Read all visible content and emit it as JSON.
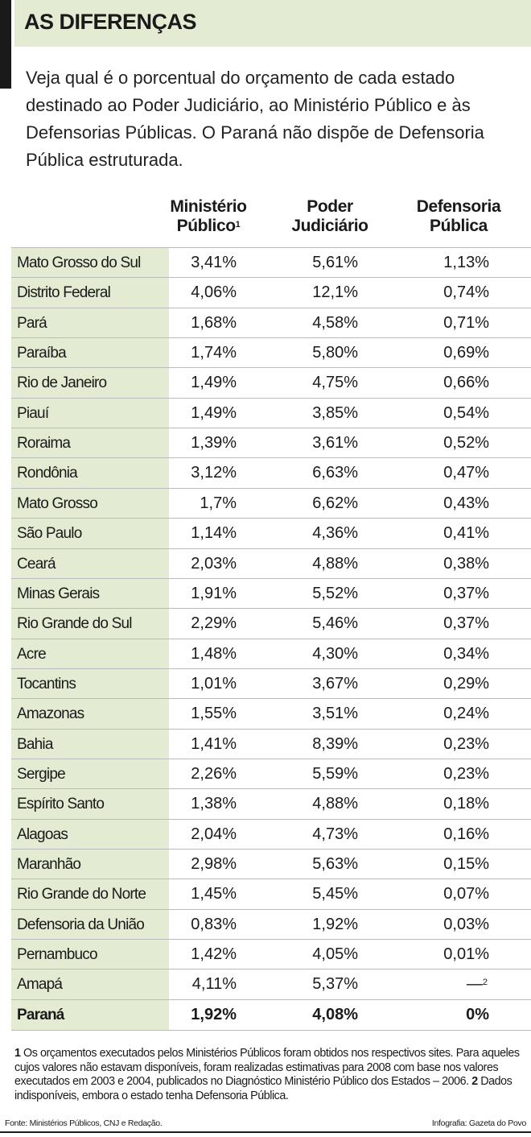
{
  "header": {
    "title": "AS DIFERENÇAS",
    "intro": "Veja qual é o porcentual do orçamento de cada estado destinado ao Poder Judiciário, ao Ministério Público e às Defensorias Públicas. O Paraná não dispõe de Defensoria Pública estruturada."
  },
  "table": {
    "columns": [
      {
        "lines": [
          "Ministério",
          "Público"
        ],
        "note": "1"
      },
      {
        "lines": [
          "Poder",
          "Judiciário"
        ]
      },
      {
        "lines": [
          "Defensoria",
          "Pública"
        ]
      }
    ],
    "rows": [
      [
        "Mato Grosso do Sul",
        "3,41%",
        "5,61%",
        "1,13%"
      ],
      [
        "Distrito Federal",
        "4,06%",
        "12,1%",
        "0,74%"
      ],
      [
        "Pará",
        "1,68%",
        "4,58%",
        "0,71%"
      ],
      [
        "Paraíba",
        "1,74%",
        "5,80%",
        "0,69%"
      ],
      [
        "Rio de Janeiro",
        "1,49%",
        "4,75%",
        "0,66%"
      ],
      [
        "Piauí",
        "1,49%",
        "3,85%",
        "0,54%"
      ],
      [
        "Roraima",
        "1,39%",
        "3,61%",
        "0,52%"
      ],
      [
        "Rondônia",
        "3,12%",
        "6,63%",
        "0,47%"
      ],
      [
        "Mato Grosso",
        "1,7%",
        "6,62%",
        "0,43%"
      ],
      [
        "São Paulo",
        "1,14%",
        "4,36%",
        "0,41%"
      ],
      [
        "Ceará",
        "2,03%",
        "4,88%",
        "0,38%"
      ],
      [
        "Minas Gerais",
        "1,91%",
        "5,52%",
        "0,37%"
      ],
      [
        "Rio Grande do Sul",
        "2,29%",
        "5,46%",
        "0,37%"
      ],
      [
        "Acre",
        "1,48%",
        "4,30%",
        "0,34%"
      ],
      [
        "Tocantins",
        "1,01%",
        "3,67%",
        "0,29%"
      ],
      [
        "Amazonas",
        "1,55%",
        "3,51%",
        "0,24%"
      ],
      [
        "Bahia",
        "1,41%",
        "8,39%",
        "0,23%"
      ],
      [
        "Sergipe",
        "2,26%",
        "5,59%",
        "0,23%"
      ],
      [
        "Espírito Santo",
        "1,38%",
        "4,88%",
        "0,18%"
      ],
      [
        "Alagoas",
        "2,04%",
        "4,73%",
        "0,16%"
      ],
      [
        "Maranhão",
        "2,98%",
        "5,63%",
        "0,15%"
      ],
      [
        "Rio Grande do Norte",
        "1,45%",
        "5,45%",
        "0,07%"
      ],
      [
        "Defensoria da União",
        "0,83%",
        "1,92%",
        "0,03%"
      ],
      [
        "Pernambuco",
        "1,42%",
        "4,05%",
        "0,01%"
      ],
      [
        "Amapá",
        "4,11%",
        "5,37%",
        {
          "text": "—",
          "note": "2"
        }
      ],
      [
        "Paraná",
        "1,92%",
        "4,08%",
        "0%"
      ]
    ]
  },
  "footnotes": [
    {
      "number": "1",
      "text": "Os orçamentos executados pelos Ministérios Públicos foram obtidos nos respectivos sites. Para aqueles cujos valores não estavam disponíveis, foram realizadas estimativas para 2008 com base nos valores executados em 2003 e 2004, publicados no Diagnóstico Ministério Público dos Estados – 2006."
    },
    {
      "number": "2",
      "text": "Dados indisponíveis, embora o estado tenha Defensoria Pública."
    }
  ],
  "source": "Fonte: Ministérios Públicos, CNJ e Redação.",
  "credit": "Infografia: Gazeta do Povo"
}
